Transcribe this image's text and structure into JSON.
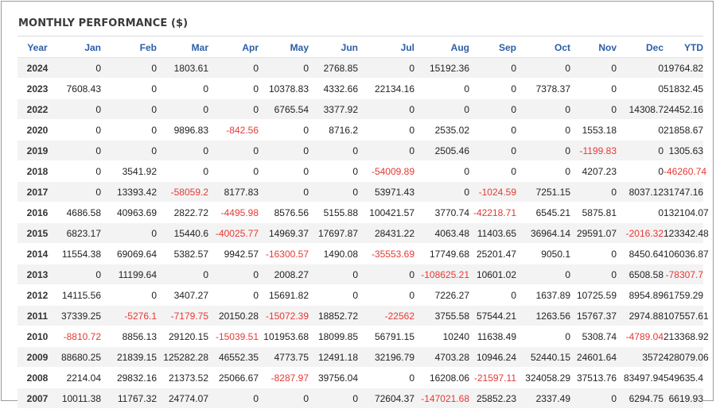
{
  "title": "MONTHLY PERFORMANCE ($)",
  "colors": {
    "header": "#2b5ea8",
    "negative": "#e53935",
    "stripe": "#f3f3f3"
  },
  "columns": [
    "Year",
    "Jan",
    "Feb",
    "Mar",
    "Apr",
    "May",
    "Jun",
    "Jul",
    "Aug",
    "Sep",
    "Oct",
    "Nov",
    "Dec",
    "YTD"
  ],
  "rows": [
    [
      "2024",
      "0",
      "0",
      "1803.61",
      "0",
      "0",
      "2768.85",
      "0",
      "15192.36",
      "0",
      "0",
      "0",
      "0",
      "19764.82"
    ],
    [
      "2023",
      "7608.43",
      "0",
      "0",
      "0",
      "10378.83",
      "4332.66",
      "22134.16",
      "0",
      "0",
      "7378.37",
      "0",
      "0",
      "51832.45"
    ],
    [
      "2022",
      "0",
      "0",
      "0",
      "0",
      "6765.54",
      "3377.92",
      "0",
      "0",
      "0",
      "0",
      "0",
      "14308.7",
      "24452.16"
    ],
    [
      "2020",
      "0",
      "0",
      "9896.83",
      "-842.56",
      "0",
      "8716.2",
      "0",
      "2535.02",
      "0",
      "0",
      "1553.18",
      "0",
      "21858.67"
    ],
    [
      "2019",
      "0",
      "0",
      "0",
      "0",
      "0",
      "0",
      "0",
      "2505.46",
      "0",
      "0",
      "-1199.83",
      "0",
      "1305.63"
    ],
    [
      "2018",
      "0",
      "3541.92",
      "0",
      "0",
      "0",
      "0",
      "-54009.89",
      "0",
      "0",
      "0",
      "4207.23",
      "0",
      "-46260.74"
    ],
    [
      "2017",
      "0",
      "13393.42",
      "-58059.2",
      "8177.83",
      "0",
      "0",
      "53971.43",
      "0",
      "-1024.59",
      "7251.15",
      "0",
      "8037.12",
      "31747.16"
    ],
    [
      "2016",
      "4686.58",
      "40963.69",
      "2822.72",
      "-4495.98",
      "8576.56",
      "5155.88",
      "100421.57",
      "3770.74",
      "-42218.71",
      "6545.21",
      "5875.81",
      "0",
      "132104.07"
    ],
    [
      "2015",
      "6823.17",
      "0",
      "15440.6",
      "-40025.77",
      "14969.37",
      "17697.87",
      "28431.22",
      "4063.48",
      "11403.65",
      "36964.14",
      "29591.07",
      "-2016.32",
      "123342.48"
    ],
    [
      "2014",
      "11554.38",
      "69069.64",
      "5382.57",
      "9942.57",
      "-16300.57",
      "1490.08",
      "-35553.69",
      "17749.68",
      "25201.47",
      "9050.1",
      "0",
      "8450.64",
      "106036.87"
    ],
    [
      "2013",
      "0",
      "11199.64",
      "0",
      "0",
      "2008.27",
      "0",
      "0",
      "-108625.21",
      "10601.02",
      "0",
      "0",
      "6508.58",
      "-78307.7"
    ],
    [
      "2012",
      "14115.56",
      "0",
      "3407.27",
      "0",
      "15691.82",
      "0",
      "0",
      "7226.27",
      "0",
      "1637.89",
      "10725.59",
      "8954.89",
      "61759.29"
    ],
    [
      "2011",
      "37339.25",
      "-5276.1",
      "-7179.75",
      "20150.28",
      "-15072.39",
      "18852.72",
      "-22562",
      "3755.58",
      "57544.21",
      "1263.56",
      "15767.37",
      "2974.88",
      "107557.61"
    ],
    [
      "2010",
      "-8810.72",
      "8856.13",
      "29120.15",
      "-15039.51",
      "101953.68",
      "18099.85",
      "56791.15",
      "10240",
      "11638.49",
      "0",
      "5308.74",
      "-4789.04",
      "213368.92"
    ],
    [
      "2009",
      "88680.25",
      "21839.15",
      "125282.28",
      "46552.35",
      "4773.75",
      "12491.18",
      "32196.79",
      "4703.28",
      "10946.24",
      "52440.15",
      "24601.64",
      "3572",
      "428079.06"
    ],
    [
      "2008",
      "2214.04",
      "29832.16",
      "21373.52",
      "25066.67",
      "-8287.97",
      "39756.04",
      "0",
      "16208.06",
      "-21597.11",
      "324058.29",
      "37513.76",
      "83497.94",
      "549635.4"
    ],
    [
      "2007",
      "10011.38",
      "11767.32",
      "24774.07",
      "0",
      "0",
      "0",
      "72604.37",
      "-147021.68",
      "25852.23",
      "2337.49",
      "0",
      "6294.75",
      "6619.93"
    ]
  ]
}
